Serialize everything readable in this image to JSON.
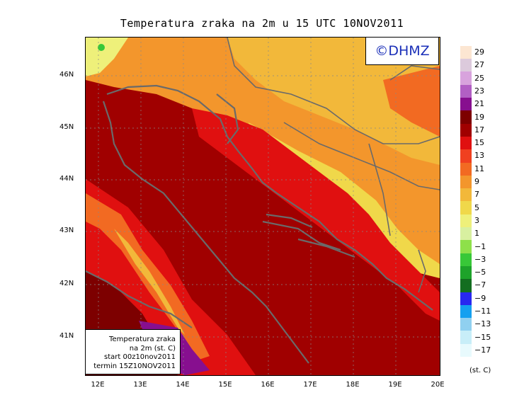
{
  "title": "Temperatura zraka na 2m u 15 UTC 10NOV2011",
  "copyright": "©DHMZ",
  "info": {
    "line1": "Temperatura zraka",
    "line2": "na 2m (st. C)",
    "line3": "start 00z10nov2011",
    "line4": "termin 15Z10NOV2011"
  },
  "lat_labels": [
    "46N",
    "45N",
    "44N",
    "43N",
    "42N",
    "41N"
  ],
  "lon_labels": [
    "12E",
    "13E",
    "14E",
    "15E",
    "16E",
    "17E",
    "18E",
    "19E",
    "20E"
  ],
  "legend": {
    "levels": [
      "29",
      "27",
      "25",
      "23",
      "21",
      "19",
      "17",
      "15",
      "13",
      "11",
      "9",
      "7",
      "5",
      "3",
      "1",
      "−1",
      "−3",
      "−5",
      "−7",
      "−9",
      "−11",
      "−13",
      "−15",
      "−17"
    ],
    "colors": [
      "#fce6d2",
      "#dccadc",
      "#d8a3dd",
      "#b25fc4",
      "#870f8f",
      "#7d0000",
      "#a00000",
      "#e01010",
      "#f04020",
      "#f26a22",
      "#f3962c",
      "#f2b83a",
      "#f0d84a",
      "#eef07a",
      "#d8f0a0",
      "#8ee04a",
      "#38c838",
      "#1ea32a",
      "#136e20",
      "#2828f0",
      "#14a0f0",
      "#90d0f0",
      "#c8eef8",
      "#e8fafd"
    ],
    "unit": "(st. C)"
  },
  "colors": {
    "sea": "#9d0a0a",
    "coast": "#6a6a6a",
    "copyright_text": "#1a2fb8"
  }
}
